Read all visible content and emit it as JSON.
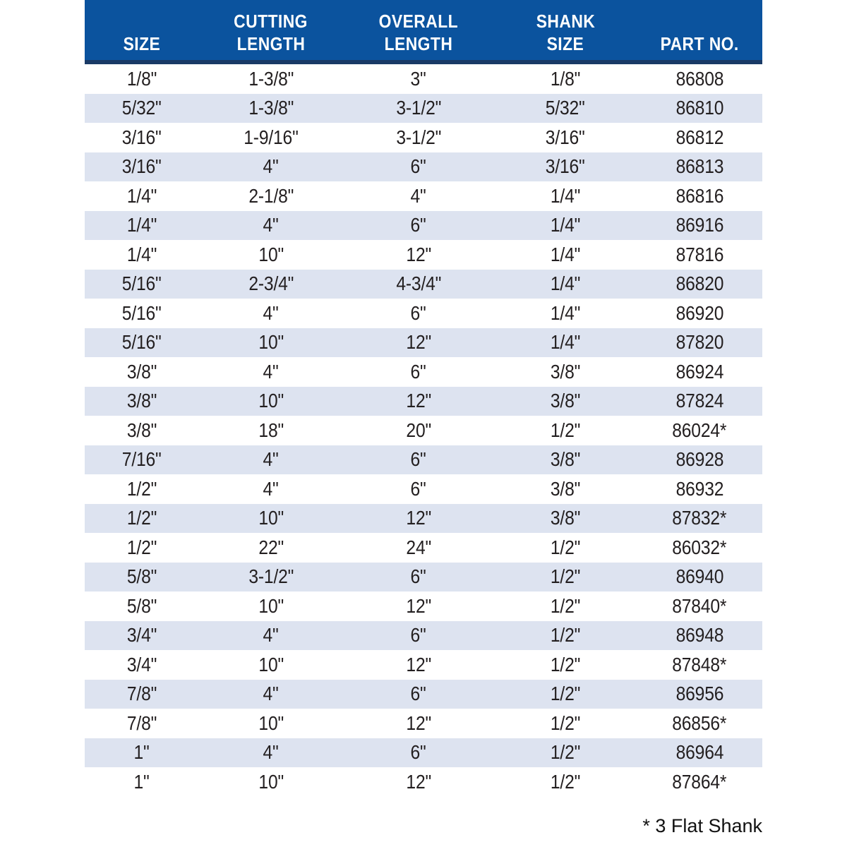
{
  "colors": {
    "header_bg": "#0B539E",
    "header_rule": "#1A3A66",
    "stripe": "#DDE3F0",
    "body_text": "#231F20",
    "header_text": "#FFFFFF",
    "page_bg": "#FFFFFF"
  },
  "table": {
    "columns": [
      {
        "id": "size",
        "lines": [
          "SIZE"
        ]
      },
      {
        "id": "cutting-length",
        "lines": [
          "CUTTING",
          "LENGTH"
        ]
      },
      {
        "id": "overall-length",
        "lines": [
          "OVERALL",
          "LENGTH"
        ]
      },
      {
        "id": "shank-size",
        "lines": [
          "SHANK",
          "SIZE"
        ]
      },
      {
        "id": "part-no",
        "lines": [
          "PART NO."
        ]
      }
    ],
    "rows": [
      [
        "1/8\"",
        "1-3/8\"",
        "3\"",
        "1/8\"",
        "86808"
      ],
      [
        "5/32\"",
        "1-3/8\"",
        "3-1/2\"",
        "5/32\"",
        "86810"
      ],
      [
        "3/16\"",
        "1-9/16\"",
        "3-1/2\"",
        "3/16\"",
        "86812"
      ],
      [
        "3/16\"",
        "4\"",
        "6\"",
        "3/16\"",
        "86813"
      ],
      [
        "1/4\"",
        "2-1/8\"",
        "4\"",
        "1/4\"",
        "86816"
      ],
      [
        "1/4\"",
        "4\"",
        "6\"",
        "1/4\"",
        "86916"
      ],
      [
        "1/4\"",
        "10\"",
        "12\"",
        "1/4\"",
        "87816"
      ],
      [
        "5/16\"",
        "2-3/4\"",
        "4-3/4\"",
        "1/4\"",
        "86820"
      ],
      [
        "5/16\"",
        "4\"",
        "6\"",
        "1/4\"",
        "86920"
      ],
      [
        "5/16\"",
        "10\"",
        "12\"",
        "1/4\"",
        "87820"
      ],
      [
        "3/8\"",
        "4\"",
        "6\"",
        "3/8\"",
        "86924"
      ],
      [
        "3/8\"",
        "10\"",
        "12\"",
        "3/8\"",
        "87824"
      ],
      [
        "3/8\"",
        "18\"",
        "20\"",
        "1/2\"",
        "86024*"
      ],
      [
        "7/16\"",
        "4\"",
        "6\"",
        "3/8\"",
        "86928"
      ],
      [
        "1/2\"",
        "4\"",
        "6\"",
        "3/8\"",
        "86932"
      ],
      [
        "1/2\"",
        "10\"",
        "12\"",
        "3/8\"",
        "87832*"
      ],
      [
        "1/2\"",
        "22\"",
        "24\"",
        "1/2\"",
        "86032*"
      ],
      [
        "5/8\"",
        "3-1/2\"",
        "6\"",
        "1/2\"",
        "86940"
      ],
      [
        "5/8\"",
        "10\"",
        "12\"",
        "1/2\"",
        "87840*"
      ],
      [
        "3/4\"",
        "4\"",
        "6\"",
        "1/2\"",
        "86948"
      ],
      [
        "3/4\"",
        "10\"",
        "12\"",
        "1/2\"",
        "87848*"
      ],
      [
        "7/8\"",
        "4\"",
        "6\"",
        "1/2\"",
        "86956"
      ],
      [
        "7/8\"",
        "10\"",
        "12\"",
        "1/2\"",
        "86856*"
      ],
      [
        "1\"",
        "4\"",
        "6\"",
        "1/2\"",
        "86964"
      ],
      [
        "1\"",
        "10\"",
        "12\"",
        "1/2\"",
        "87864*"
      ]
    ]
  },
  "footnote": "* 3 Flat Shank"
}
